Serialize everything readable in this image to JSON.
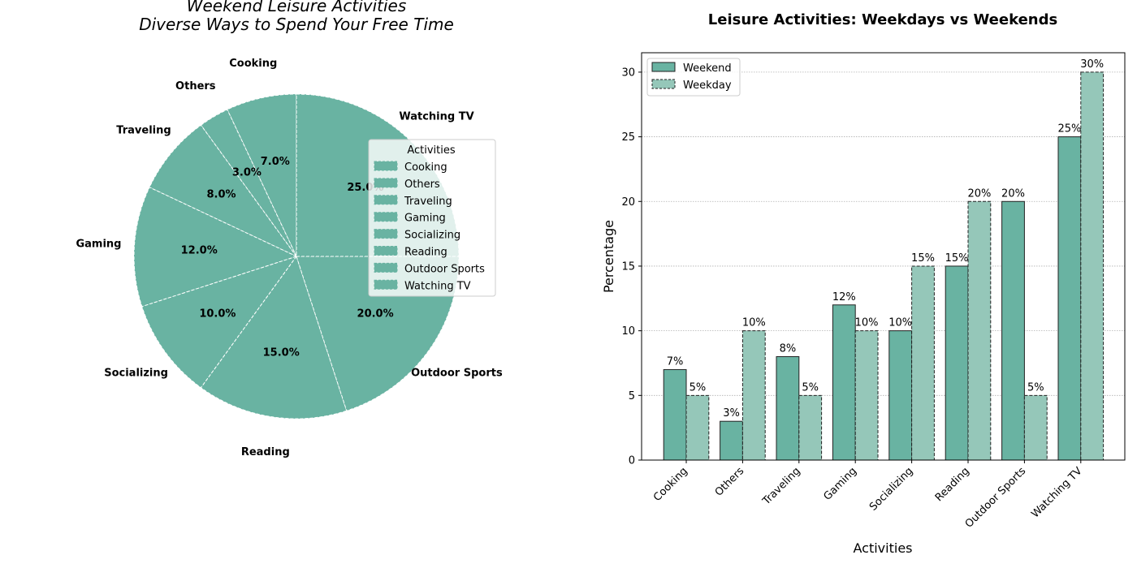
{
  "colors": {
    "pie_fill": "#69b3a2",
    "weekend": "#69b3a2",
    "weekday": "#95c7b9",
    "edge": "#222222",
    "grid": "#b0b0b0"
  },
  "chart_data": [
    {
      "type": "pie",
      "title_line1": "Weekend Leisure Activities",
      "title_line2": "Diverse Ways to Spend Your Free Time",
      "legend_title": "Activities",
      "start_angle_deg": 90,
      "slices": [
        {
          "label": "Cooking",
          "value": 7.0,
          "pct": "7.0%"
        },
        {
          "label": "Others",
          "value": 3.0,
          "pct": "3.0%"
        },
        {
          "label": "Traveling",
          "value": 8.0,
          "pct": "8.0%"
        },
        {
          "label": "Gaming",
          "value": 12.0,
          "pct": "12.0%"
        },
        {
          "label": "Socializing",
          "value": 10.0,
          "pct": "10.0%"
        },
        {
          "label": "Reading",
          "value": 15.0,
          "pct": "15.0%"
        },
        {
          "label": "Outdoor Sports",
          "value": 20.0,
          "pct": "20.0%"
        },
        {
          "label": "Watching TV",
          "value": 25.0,
          "pct": "25.0%"
        }
      ]
    },
    {
      "type": "bar",
      "title": "Leisure Activities: Weekdays vs Weekends",
      "xlabel": "Activities",
      "ylabel": "Percentage",
      "ylim": [
        0,
        31.5
      ],
      "yticks": [
        0,
        5,
        10,
        15,
        20,
        25,
        30
      ],
      "grid": "y",
      "legend_position": "top-left",
      "categories": [
        "Cooking",
        "Others",
        "Traveling",
        "Gaming",
        "Socializing",
        "Reading",
        "Outdoor Sports",
        "Watching TV"
      ],
      "series": [
        {
          "name": "Weekend",
          "values": [
            7,
            3,
            8,
            12,
            10,
            15,
            20,
            25
          ],
          "labels": [
            "7%",
            "3%",
            "8%",
            "12%",
            "10%",
            "15%",
            "20%",
            "25%"
          ]
        },
        {
          "name": "Weekday",
          "values": [
            5,
            10,
            5,
            10,
            15,
            20,
            5,
            30
          ],
          "labels": [
            "5%",
            "10%",
            "5%",
            "10%",
            "15%",
            "20%",
            "5%",
            "30%"
          ]
        }
      ]
    }
  ]
}
